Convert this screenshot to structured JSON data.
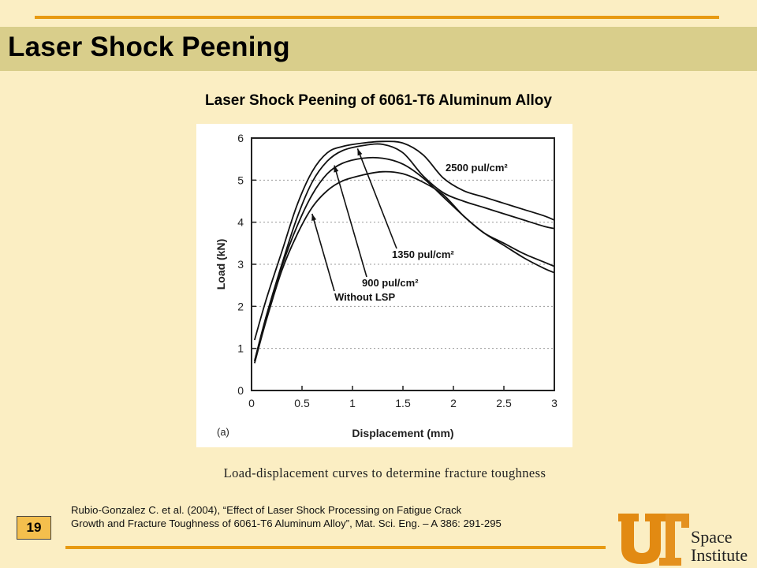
{
  "slide": {
    "title": "Laser Shock Peening",
    "page_number": "19",
    "caption": "Load-displacement curves to determine fracture toughness",
    "citation_line1": "Rubio-Gonzalez C. et al. (2004), “Effect of Laser Shock Processing on Fatigue Crack",
    "citation_line2": "Growth and Fracture Toughness of 6061-T6 Aluminum Alloy”, Mat. Sci. Eng. – A 386: 291-295",
    "logo_line1": "Space",
    "logo_line2": "Institute",
    "logo_mark": "UT",
    "colors": {
      "background": "#fbeec3",
      "title_bar": "#d9ce8b",
      "accent_rule": "#e79a12",
      "badge": "#f4bf4d",
      "logo": "#e28a12"
    }
  },
  "chart_data": {
    "type": "line",
    "title": "Laser Shock Peening of 6061-T6 Aluminum Alloy",
    "panel_label": "(a)",
    "xlabel": "Displacement (mm)",
    "ylabel": "Load (kN)",
    "xlim": [
      0,
      3
    ],
    "ylim": [
      0,
      6
    ],
    "x_ticks": [
      "0",
      "0.5",
      "1",
      "1.5",
      "2",
      "2.5",
      "3"
    ],
    "y_ticks": [
      "0",
      "1",
      "2",
      "3",
      "4",
      "5",
      "6"
    ],
    "grid": "dotted",
    "series": [
      {
        "name": "2500 pul/cm²",
        "x": [
          0.03,
          0.15,
          0.3,
          0.45,
          0.6,
          0.75,
          0.9,
          1.1,
          1.3,
          1.5,
          1.7,
          1.9,
          2.1,
          2.3,
          2.5,
          2.7,
          2.9,
          3.0
        ],
        "y": [
          1.2,
          2.2,
          3.3,
          4.4,
          5.2,
          5.65,
          5.8,
          5.88,
          5.92,
          5.88,
          5.6,
          5.05,
          4.75,
          4.6,
          4.45,
          4.3,
          4.15,
          4.05
        ]
      },
      {
        "name": "1350 pul/cm²",
        "x": [
          0.03,
          0.15,
          0.3,
          0.45,
          0.6,
          0.75,
          0.9,
          1.1,
          1.3,
          1.5,
          1.7,
          1.9,
          2.1,
          2.3,
          2.5,
          2.7,
          2.9,
          3.0
        ],
        "y": [
          0.7,
          1.8,
          3.0,
          4.1,
          4.95,
          5.45,
          5.7,
          5.82,
          5.85,
          5.65,
          5.1,
          4.7,
          4.5,
          4.35,
          4.2,
          4.05,
          3.9,
          3.85
        ]
      },
      {
        "name": "900 pul/cm²",
        "x": [
          0.03,
          0.15,
          0.3,
          0.45,
          0.6,
          0.75,
          0.9,
          1.1,
          1.3,
          1.5,
          1.7,
          1.9,
          2.1,
          2.3,
          2.5,
          2.7,
          2.9,
          3.0
        ],
        "y": [
          0.7,
          1.8,
          2.95,
          3.9,
          4.65,
          5.15,
          5.4,
          5.52,
          5.52,
          5.38,
          5.05,
          4.6,
          4.15,
          3.75,
          3.5,
          3.25,
          3.05,
          2.95
        ]
      },
      {
        "name": "Without LSP",
        "x": [
          0.03,
          0.15,
          0.3,
          0.45,
          0.6,
          0.75,
          0.9,
          1.1,
          1.3,
          1.5,
          1.7,
          1.9,
          2.1,
          2.3,
          2.5,
          2.7,
          2.9,
          3.0
        ],
        "y": [
          0.65,
          1.7,
          2.85,
          3.7,
          4.35,
          4.75,
          4.98,
          5.12,
          5.2,
          5.15,
          4.95,
          4.65,
          4.15,
          3.75,
          3.45,
          3.15,
          2.9,
          2.8
        ]
      }
    ],
    "annotations": [
      {
        "text": "2500 pul/cm²",
        "target_series": 0
      },
      {
        "text": "1350 pul/cm²",
        "target_series": 1
      },
      {
        "text": "900 pul/cm²",
        "target_series": 2
      },
      {
        "text": "Without LSP",
        "target_series": 3
      }
    ]
  }
}
